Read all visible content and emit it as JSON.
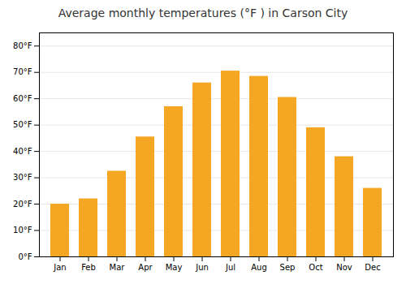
{
  "chart_data": {
    "type": "bar",
    "title": "Average monthly temperatures (°F ) in Carson City",
    "categories": [
      "Jan",
      "Feb",
      "Mar",
      "Apr",
      "May",
      "Jun",
      "Jul",
      "Aug",
      "Sep",
      "Oct",
      "Nov",
      "Dec"
    ],
    "values": [
      20,
      22,
      32.5,
      45.5,
      57,
      66,
      70.5,
      68.5,
      60.5,
      49,
      38,
      26
    ],
    "color": "#F5A623",
    "ylim": [
      0,
      85
    ],
    "yticks": [
      {
        "value": 0,
        "label": "0°F"
      },
      {
        "value": 10,
        "label": "10°F"
      },
      {
        "value": 20,
        "label": "20°F"
      },
      {
        "value": 30,
        "label": "30°F"
      },
      {
        "value": 40,
        "label": "40°F"
      },
      {
        "value": 50,
        "label": "50°F"
      },
      {
        "value": 60,
        "label": "60°F"
      },
      {
        "value": 70,
        "label": "70°F"
      },
      {
        "value": 80,
        "label": "80°F"
      }
    ],
    "grid": true
  }
}
